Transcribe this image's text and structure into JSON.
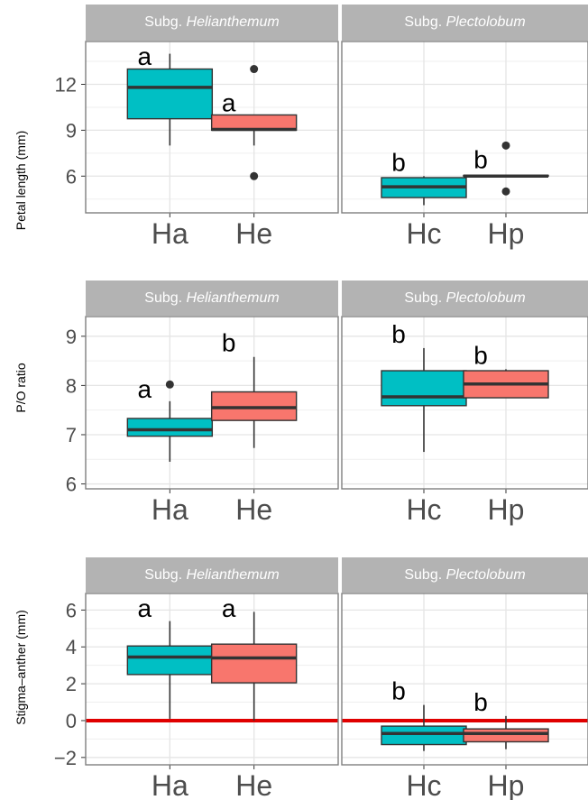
{
  "colors": {
    "Helianthemum": "#00BFC4",
    "Plectolobum_Hc": "#00BFC4",
    "He": "#F8766D",
    "Hp": "#F8766D",
    "strip_bg": "#b3b3b3",
    "strip_text": "#ffffff",
    "panel_border": "#7f7f7f",
    "grid": "#e5e5e5",
    "median": "#333333",
    "refline": "#e00000"
  },
  "chart_data": {
    "type": "box",
    "facets": [
      {
        "prefix": "Subg. ",
        "name": "Helianthemum"
      },
      {
        "prefix": "Subg. ",
        "name": "Plectolobum"
      }
    ],
    "rows": [
      {
        "ylabel": "Petal length (mm)",
        "ylim": [
          3.6,
          14.8
        ],
        "yticks": [
          6,
          9,
          12
        ],
        "ytick_labels": [
          "6",
          "9",
          "12"
        ],
        "minor_ticks": [
          4.5,
          7.5,
          10.5,
          13.5
        ],
        "reference_line": null,
        "facets": [
          {
            "groups": [
              {
                "category": "Ha",
                "color": "#00BFC4",
                "min": 8.0,
                "q1": 9.75,
                "median": 11.8,
                "q3": 13.0,
                "max": 14.0,
                "outliers": [],
                "letter": "a"
              },
              {
                "category": "He",
                "color": "#F8766D",
                "min": 8.0,
                "q1": 9.0,
                "median": 9.05,
                "q3": 10.0,
                "max": 10.0,
                "outliers": [
                  6.0,
                  13.0
                ],
                "letter": "a"
              }
            ]
          },
          {
            "groups": [
              {
                "category": "Hc",
                "color": "#00BFC4",
                "min": 4.1,
                "q1": 4.6,
                "median": 5.3,
                "q3": 5.9,
                "max": 6.0,
                "outliers": [],
                "letter": "b"
              },
              {
                "category": "Hp",
                "color": "#F8766D",
                "min": 6.0,
                "q1": 6.0,
                "median": 6.0,
                "q3": 6.05,
                "max": 6.05,
                "outliers": [
                  5.0,
                  8.0
                ],
                "letter": "b"
              }
            ]
          }
        ]
      },
      {
        "ylabel": "P/O ratio",
        "ylim": [
          5.9,
          9.4
        ],
        "yticks": [
          6,
          7,
          8,
          9
        ],
        "ytick_labels": [
          "6",
          "7",
          "8",
          "9"
        ],
        "minor_ticks": [
          6.5,
          7.5,
          8.5
        ],
        "reference_line": null,
        "facets": [
          {
            "groups": [
              {
                "category": "Ha",
                "color": "#00BFC4",
                "min": 6.45,
                "q1": 6.97,
                "median": 7.1,
                "q3": 7.33,
                "max": 7.68,
                "outliers": [
                  8.02
                ],
                "letter": "a"
              },
              {
                "category": "He",
                "color": "#F8766D",
                "min": 6.73,
                "q1": 7.29,
                "median": 7.55,
                "q3": 7.87,
                "max": 8.58,
                "outliers": [],
                "letter": "b"
              }
            ]
          },
          {
            "groups": [
              {
                "category": "Hc",
                "color": "#00BFC4",
                "min": 6.65,
                "q1": 7.59,
                "median": 7.77,
                "q3": 8.3,
                "max": 8.76,
                "outliers": [],
                "letter": "b"
              },
              {
                "category": "Hp",
                "color": "#F8766D",
                "min": 7.75,
                "q1": 7.75,
                "median": 8.03,
                "q3": 8.3,
                "max": 8.33,
                "outliers": [],
                "letter": "b"
              }
            ]
          }
        ]
      },
      {
        "ylabel": "Stigma–anther (mm)",
        "ylim": [
          -2.4,
          6.9
        ],
        "yticks": [
          -2,
          0,
          2,
          4,
          6
        ],
        "ytick_labels": [
          "−2",
          "0",
          "2",
          "4",
          "6"
        ],
        "minor_ticks": [
          -1,
          1,
          3,
          5
        ],
        "reference_line": 0,
        "facets": [
          {
            "groups": [
              {
                "category": "Ha",
                "color": "#00BFC4",
                "min": 0.1,
                "q1": 2.5,
                "median": 3.45,
                "q3": 4.05,
                "max": 5.4,
                "outliers": [],
                "letter": "a"
              },
              {
                "category": "He",
                "color": "#F8766D",
                "min": 0.0,
                "q1": 2.05,
                "median": 3.4,
                "q3": 4.15,
                "max": 5.9,
                "outliers": [],
                "letter": "a"
              }
            ]
          },
          {
            "groups": [
              {
                "category": "Hc",
                "color": "#00BFC4",
                "min": -1.65,
                "q1": -1.3,
                "median": -0.7,
                "q3": -0.3,
                "max": 0.85,
                "outliers": [],
                "letter": "b"
              },
              {
                "category": "Hp",
                "color": "#F8766D",
                "min": -1.55,
                "q1": -1.15,
                "median": -0.7,
                "q3": -0.45,
                "max": 0.25,
                "outliers": [],
                "letter": "b"
              }
            ]
          }
        ]
      }
    ]
  }
}
